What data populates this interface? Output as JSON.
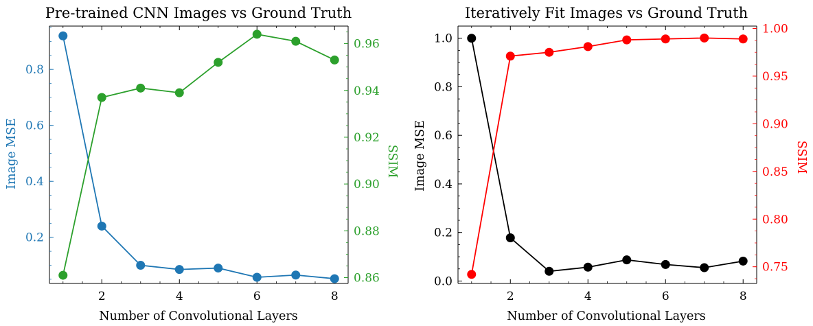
{
  "chart_data": [
    {
      "type": "line",
      "title": "Pre-trained CNN Images vs Ground Truth",
      "xlabel": "Number of Convolutional Layers",
      "ylabel": "Image MSE",
      "y2label": "SSIM",
      "xlim": [
        0.65,
        8.35
      ],
      "ylim": [
        0.035,
        0.955
      ],
      "y2lim": [
        0.8575,
        0.9675
      ],
      "x_ticks": [
        2,
        4,
        6,
        8
      ],
      "y_ticks": [
        0.2,
        0.4,
        0.6,
        0.8
      ],
      "y2_ticks": [
        0.86,
        0.88,
        0.9,
        0.92,
        0.94,
        0.96
      ],
      "x_tick_labels": [
        "2",
        "4",
        "6",
        "8"
      ],
      "y_tick_labels": [
        "0.2",
        "0.4",
        "0.6",
        "0.8"
      ],
      "y2_tick_labels": [
        "0.86",
        "0.88",
        "0.90",
        "0.92",
        "0.94",
        "0.96"
      ],
      "colors": {
        "left": "#1f77b4",
        "right": "#2ca02c"
      },
      "x": [
        1,
        2,
        3,
        4,
        5,
        6,
        7,
        8
      ],
      "series": [
        {
          "name": "Image MSE",
          "axis": "left",
          "color": "#1f77b4",
          "values": [
            0.92,
            0.24,
            0.1,
            0.085,
            0.09,
            0.057,
            0.065,
            0.052
          ]
        },
        {
          "name": "SSIM",
          "axis": "right",
          "color": "#2ca02c",
          "values": [
            0.861,
            0.937,
            0.941,
            0.939,
            0.952,
            0.964,
            0.961,
            0.953
          ]
        }
      ]
    },
    {
      "type": "line",
      "title": "Iteratively Fit Images vs Ground Truth",
      "xlabel": "Number of Convolutional Layers",
      "ylabel": "Image MSE",
      "y2label": "SSIM",
      "xlim": [
        0.65,
        8.35
      ],
      "ylim": [
        -0.01,
        1.05
      ],
      "y2lim": [
        0.7325,
        1.0025
      ],
      "x_ticks": [
        2,
        4,
        6,
        8
      ],
      "y_ticks": [
        0.0,
        0.2,
        0.4,
        0.6,
        0.8,
        1.0
      ],
      "y2_ticks": [
        0.75,
        0.8,
        0.85,
        0.9,
        0.95,
        1.0
      ],
      "x_tick_labels": [
        "2",
        "4",
        "6",
        "8"
      ],
      "y_tick_labels": [
        "0.0",
        "0.2",
        "0.4",
        "0.6",
        "0.8",
        "1.0"
      ],
      "y2_tick_labels": [
        "0.75",
        "0.80",
        "0.85",
        "0.90",
        "0.95",
        "1.00"
      ],
      "colors": {
        "left": "#000000",
        "right": "#ff0000"
      },
      "x": [
        1,
        2,
        3,
        4,
        5,
        6,
        7,
        8
      ],
      "series": [
        {
          "name": "Image MSE",
          "axis": "left",
          "color": "#000000",
          "values": [
            1.0,
            0.178,
            0.04,
            0.057,
            0.087,
            0.068,
            0.055,
            0.082
          ]
        },
        {
          "name": "SSIM",
          "axis": "right",
          "color": "#ff0000",
          "values": [
            0.742,
            0.971,
            0.975,
            0.981,
            0.988,
            0.989,
            0.99,
            0.989
          ]
        }
      ]
    }
  ]
}
